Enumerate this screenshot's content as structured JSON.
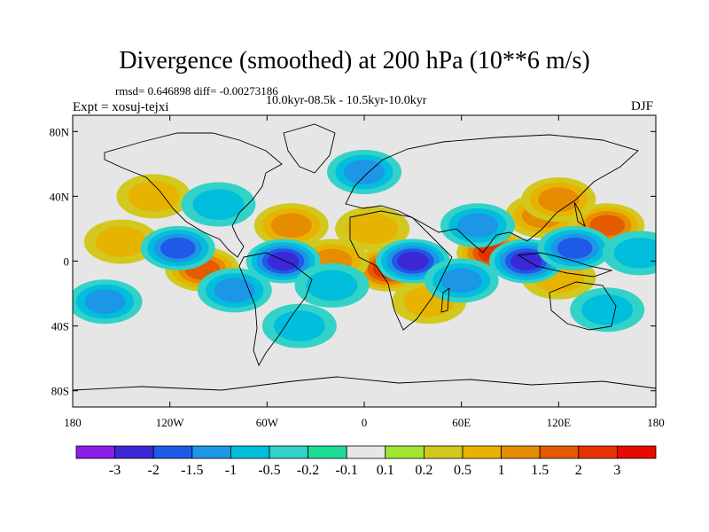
{
  "chart_data": {
    "type": "contour-map",
    "title": "Divergence (smoothed) at 200 hPa (10**6 m/s)",
    "stats": "rmsd= 0.646898 diff= -0.00273186",
    "experiment": "Expt = xosuj-tejxi",
    "period": "10.0kyr-08.5k - 10.5kyr-10.0kyr",
    "season": "DJF",
    "x_ticks": [
      "180",
      "120W",
      "60W",
      "0",
      "60E",
      "120E",
      "180"
    ],
    "y_ticks": [
      "80N",
      "40N",
      "0",
      "40S",
      "80S"
    ],
    "xlim": [
      -180,
      180
    ],
    "ylim": [
      -90,
      90
    ],
    "levels": [
      "-3",
      "-2",
      "-1.5",
      "-1",
      "-0.5",
      "-0.2",
      "-0.1",
      "0.1",
      "0.2",
      "0.5",
      "1",
      "1.5",
      "2",
      "3"
    ],
    "colors": [
      "#8c1ee6",
      "#3c28d7",
      "#1e5ae6",
      "#1e96e6",
      "#00bedc",
      "#32d2c8",
      "#1edc96",
      "#e6e6e6",
      "#a0e632",
      "#d2c81e",
      "#e6b400",
      "#e68c00",
      "#e65a00",
      "#e63200",
      "#e60a00"
    ],
    "regions": [
      {
        "lon": 15,
        "lat": -5,
        "value": 2.2
      },
      {
        "lon": 80,
        "lat": 5,
        "value": 2.4
      },
      {
        "lon": -100,
        "lat": -5,
        "value": 1.8
      },
      {
        "lon": -45,
        "lat": 22,
        "value": 1.4
      },
      {
        "lon": 150,
        "lat": 22,
        "value": 1.6
      },
      {
        "lon": 110,
        "lat": 28,
        "value": 1.0
      },
      {
        "lon": -150,
        "lat": 12,
        "value": 0.8
      },
      {
        "lon": 120,
        "lat": 38,
        "value": 1.2
      },
      {
        "lon": 5,
        "lat": 20,
        "value": 0.9
      },
      {
        "lon": -20,
        "lat": 0,
        "value": 1.1
      },
      {
        "lon": 40,
        "lat": -25,
        "value": 0.8
      },
      {
        "lon": 120,
        "lat": -10,
        "value": 0.9
      },
      {
        "lon": -130,
        "lat": 40,
        "value": 0.6
      },
      {
        "lon": 30,
        "lat": 0,
        "value": -2.0
      },
      {
        "lon": -50,
        "lat": 0,
        "value": -2.2
      },
      {
        "lon": 100,
        "lat": 0,
        "value": -2.4
      },
      {
        "lon": -115,
        "lat": 8,
        "value": -1.8
      },
      {
        "lon": -80,
        "lat": -18,
        "value": -1.4
      },
      {
        "lon": 130,
        "lat": 8,
        "value": -1.5
      },
      {
        "lon": 0,
        "lat": 55,
        "value": -1.0
      },
      {
        "lon": -20,
        "lat": -15,
        "value": -0.9
      },
      {
        "lon": 60,
        "lat": -12,
        "value": -1.2
      },
      {
        "lon": -160,
        "lat": -25,
        "value": -1.0
      },
      {
        "lon": 150,
        "lat": -30,
        "value": -0.8
      },
      {
        "lon": -90,
        "lat": 35,
        "value": -0.8
      },
      {
        "lon": 70,
        "lat": 22,
        "value": -1.0
      },
      {
        "lon": -40,
        "lat": -40,
        "value": -0.6
      },
      {
        "lon": 170,
        "lat": 5,
        "value": -0.7
      }
    ]
  }
}
